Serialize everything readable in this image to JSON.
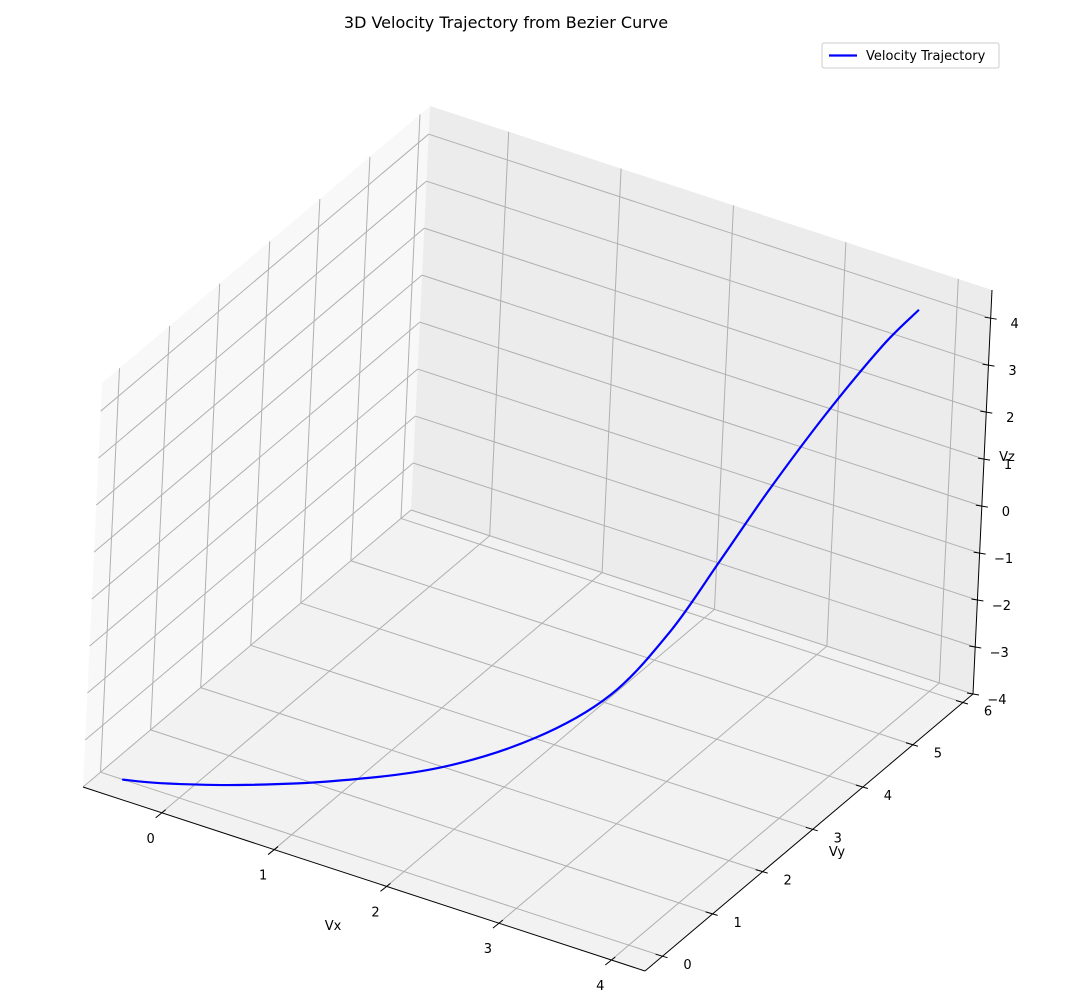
{
  "chart_data": {
    "type": "line",
    "projection": "3d",
    "title": "3D Velocity Trajectory from Bezier Curve",
    "xlabel": "Vx",
    "ylabel": "Vy",
    "zlabel": "Vz",
    "xlim": [
      -0.7,
      4.3
    ],
    "ylim": [
      -0.35,
      6.2
    ],
    "zlim": [
      -4.0,
      4.6
    ],
    "x_ticks": [
      0,
      1,
      2,
      3,
      4
    ],
    "y_ticks": [
      0,
      1,
      2,
      3,
      4,
      5,
      6
    ],
    "z_ticks": [
      -4,
      -3,
      -2,
      -1,
      0,
      1,
      2,
      3,
      4
    ],
    "z_tick_labels": [
      "−4",
      "−3",
      "−2",
      "−1",
      "0",
      "1",
      "2",
      "3",
      "4"
    ],
    "grid": true,
    "legend_position": "top-right",
    "series": [
      {
        "name": "Velocity Trajectory",
        "color": "#0000ff",
        "points": [
          {
            "vx": -0.5,
            "vy": 0.0,
            "vz": -4.0
          },
          {
            "vx": -0.23,
            "vy": 0.15,
            "vz": -4.0
          },
          {
            "vx": 0.3,
            "vy": 0.5,
            "vz": -3.94
          },
          {
            "vx": 0.94,
            "vy": 1.0,
            "vz": -3.8
          },
          {
            "vx": 1.6,
            "vy": 1.6,
            "vz": -3.54
          },
          {
            "vx": 2.17,
            "vy": 2.2,
            "vz": -3.0
          },
          {
            "vx": 2.6,
            "vy": 2.7,
            "vz": -2.2
          },
          {
            "vx": 2.91,
            "vy": 3.15,
            "vz": -1.0
          },
          {
            "vx": 3.14,
            "vy": 3.56,
            "vz": 0.3
          },
          {
            "vx": 3.36,
            "vy": 4.0,
            "vz": 1.6
          },
          {
            "vx": 3.6,
            "vy": 4.5,
            "vz": 2.9
          },
          {
            "vx": 3.85,
            "vy": 5.05,
            "vz": 4.1
          },
          {
            "vx": 4.0,
            "vy": 5.4,
            "vz": 4.65
          }
        ]
      }
    ]
  }
}
